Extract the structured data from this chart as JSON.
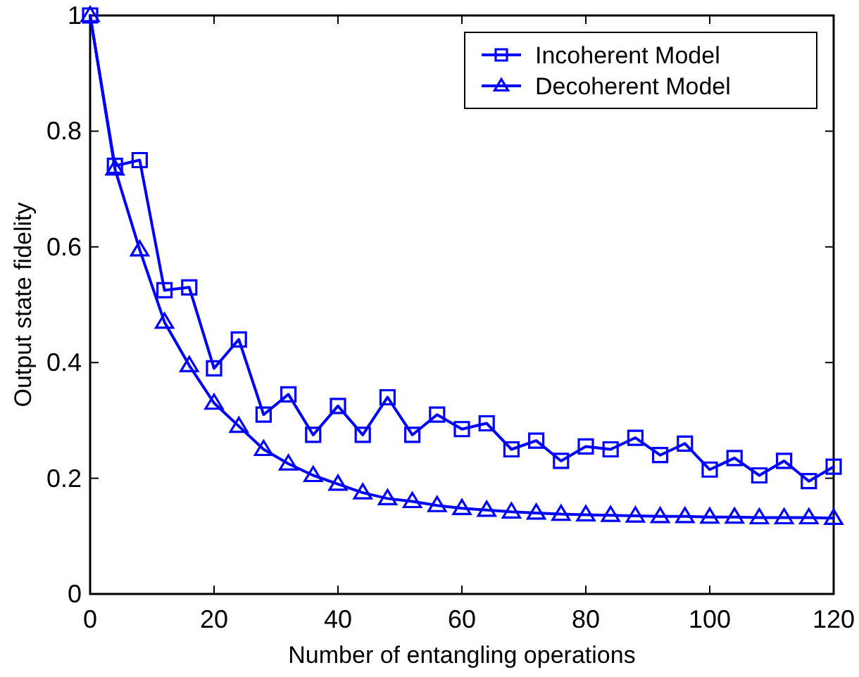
{
  "chart_data": {
    "type": "line",
    "xlabel": "Number of entangling operations",
    "ylabel": "Output state fidelity",
    "x": [
      0,
      4,
      8,
      12,
      16,
      20,
      24,
      28,
      32,
      36,
      40,
      44,
      48,
      52,
      56,
      60,
      64,
      68,
      72,
      76,
      80,
      84,
      88,
      92,
      96,
      100,
      104,
      108,
      112,
      116,
      120
    ],
    "series": [
      {
        "name": "Incoherent Model",
        "color": "#0000ff",
        "marker": "square",
        "values": [
          1,
          0.74,
          0.75,
          0.525,
          0.53,
          0.39,
          0.44,
          0.31,
          0.345,
          0.275,
          0.325,
          0.275,
          0.34,
          0.275,
          0.31,
          0.285,
          0.295,
          0.25,
          0.265,
          0.23,
          0.255,
          0.25,
          0.27,
          0.24,
          0.26,
          0.215,
          0.235,
          0.205,
          0.23,
          0.195,
          0.22
        ]
      },
      {
        "name": "Decoherent Model",
        "color": "#0000ff",
        "marker": "triangle",
        "values": [
          1,
          0.735,
          0.595,
          0.47,
          0.395,
          0.33,
          0.29,
          0.25,
          0.225,
          0.205,
          0.19,
          0.175,
          0.165,
          0.16,
          0.153,
          0.148,
          0.145,
          0.142,
          0.14,
          0.138,
          0.137,
          0.136,
          0.135,
          0.134,
          0.134,
          0.133,
          0.133,
          0.132,
          0.132,
          0.132,
          0.131
        ]
      }
    ],
    "xlim": [
      0,
      120
    ],
    "xticks": [
      0,
      20,
      40,
      60,
      80,
      100,
      120
    ],
    "ylim": [
      0,
      1
    ],
    "yticks": [
      0,
      0.2,
      0.4,
      0.6,
      0.8,
      1
    ],
    "grid": false,
    "legend": "top right",
    "line_style": "solid"
  }
}
